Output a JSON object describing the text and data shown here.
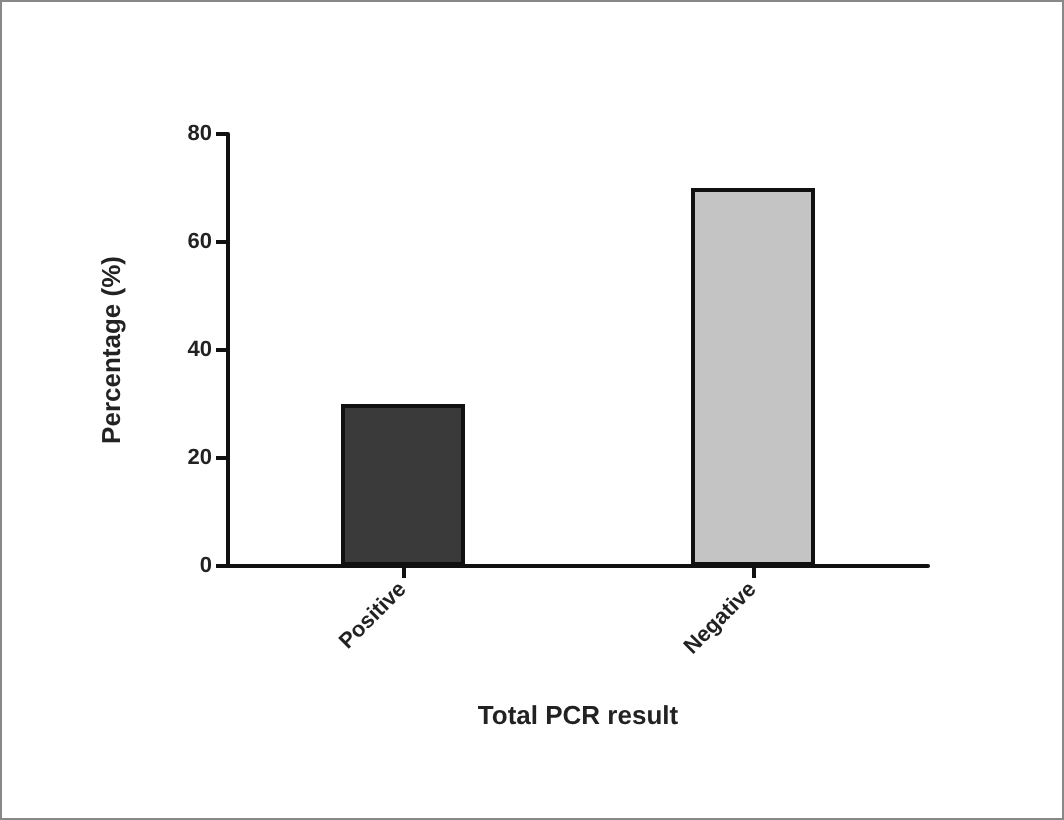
{
  "chart_data": {
    "type": "bar",
    "xlabel": "Total PCR result",
    "ylabel": "Percentage (%)",
    "categories": [
      "Positive",
      "Negative"
    ],
    "values": [
      30,
      70
    ],
    "colors": [
      "#3a3a3a",
      "#c4c4c4"
    ],
    "ylim": [
      0,
      80
    ],
    "yticks": [
      0,
      20,
      40,
      60,
      80
    ],
    "grid": false
  }
}
